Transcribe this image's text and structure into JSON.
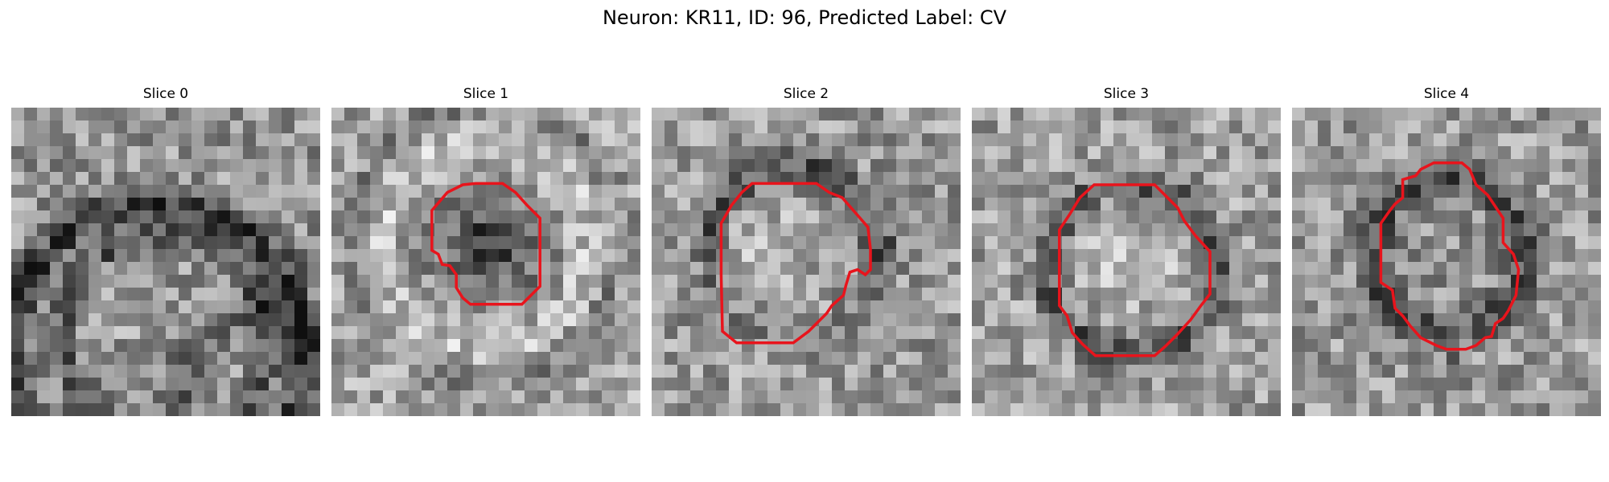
{
  "figure": {
    "title": "Neuron: KR11, ID: 96, Predicted Label: CV"
  },
  "panels": [
    {
      "label": "Slice 0",
      "has_contour": false
    },
    {
      "label": "Slice 1",
      "has_contour": true
    },
    {
      "label": "Slice 2",
      "has_contour": true
    },
    {
      "label": "Slice 3",
      "has_contour": true
    },
    {
      "label": "Slice 4",
      "has_contour": true
    }
  ],
  "colors": {
    "contour": "#e8141c",
    "background": "#ffffff"
  }
}
